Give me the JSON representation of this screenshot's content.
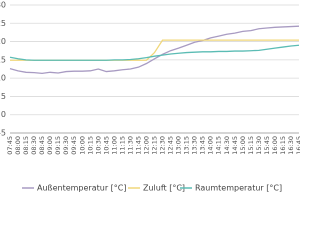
{
  "chart_data": {
    "type": "line",
    "categories": [
      "07:45",
      "08:00",
      "08:15",
      "08:30",
      "08:45",
      "09:00",
      "09:15",
      "09:30",
      "09:45",
      "10:00",
      "10:15",
      "10:30",
      "10:45",
      "11:00",
      "11:15",
      "11:30",
      "11:45",
      "12:00",
      "12:15",
      "12:30",
      "12:45",
      "13:00",
      "13:15",
      "13:30",
      "13:45",
      "14:00",
      "14:15",
      "14:30",
      "14:45",
      "15:00",
      "15:15",
      "15:30",
      "15:45",
      "16:00",
      "16:15",
      "16:30",
      "16:45"
    ],
    "series": [
      {
        "name": "Außentemperatur [°C]",
        "color": "#a89bc2",
        "values": [
          12.6,
          12,
          11.6,
          11.5,
          11.3,
          11.6,
          11.4,
          11.8,
          11.9,
          11.9,
          12,
          12.5,
          11.8,
          12,
          12.3,
          12.5,
          13,
          14,
          15.3,
          16.5,
          17.5,
          18.2,
          19,
          19.8,
          20.3,
          21,
          21.5,
          22,
          22.3,
          22.8,
          23,
          23.5,
          23.7,
          23.9,
          24,
          24.1,
          24.2
        ]
      },
      {
        "name": "Zuluft [°C]",
        "color": "#f0d77a",
        "values": [
          14.9,
          14.9,
          14.9,
          14.9,
          14.9,
          14.9,
          14.9,
          14.9,
          14.9,
          14.9,
          14.9,
          14.9,
          14.9,
          14.9,
          14.9,
          14.9,
          14.9,
          14.9,
          17,
          20.4,
          20.4,
          20.4,
          20.4,
          20.4,
          20.4,
          20.4,
          20.4,
          20.4,
          20.4,
          20.4,
          20.4,
          20.4,
          20.4,
          20.4,
          20.4,
          20.4,
          20.4
        ]
      },
      {
        "name": "Raumtemperatur [°C]",
        "color": "#5bbcb4",
        "values": [
          15.7,
          15.3,
          15,
          14.9,
          14.9,
          14.9,
          14.9,
          14.9,
          14.9,
          14.9,
          14.9,
          14.9,
          14.9,
          15,
          15,
          15.1,
          15.3,
          15.6,
          16,
          16.3,
          16.6,
          16.8,
          17,
          17.1,
          17.2,
          17.2,
          17.3,
          17.3,
          17.4,
          17.4,
          17.5,
          17.6,
          17.9,
          18.2,
          18.5,
          18.8,
          19
        ]
      }
    ],
    "ylim": [
      -5,
      30
    ],
    "yticks": [
      -5,
      0,
      5,
      10,
      15,
      20,
      25,
      30
    ],
    "grid": true
  }
}
